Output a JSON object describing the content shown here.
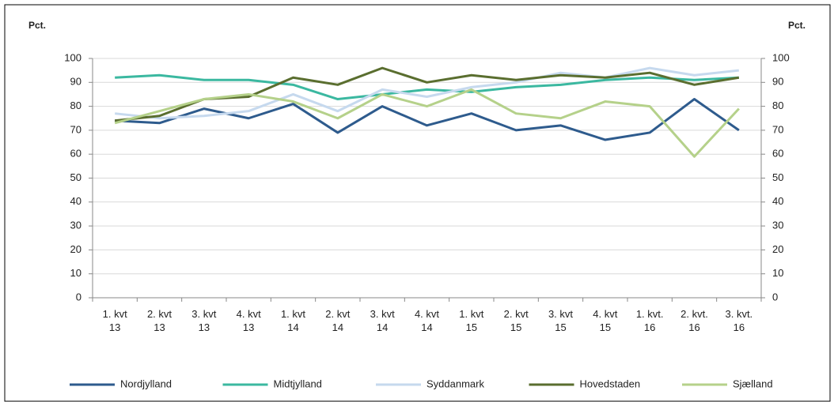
{
  "chart_data": {
    "type": "line",
    "ylabel": "Pct.",
    "y2label": "Pct.",
    "categories": [
      "1. kvt 13",
      "2. kvt 13",
      "3. kvt 13",
      "4. kvt 13",
      "1. kvt 14",
      "2. kvt 14",
      "3. kvt 14",
      "4. kvt 14",
      "1. kvt 15",
      "2. kvt 15",
      "3. kvt 15",
      "4. kvt 15",
      "1. kvt. 16",
      "2. kvt. 16",
      "3. kvt. 16"
    ],
    "series": [
      {
        "name": "Nordjylland",
        "color": "#2e5b8d",
        "values": [
          74,
          73,
          79,
          75,
          81,
          69,
          80,
          72,
          77,
          70,
          72,
          66,
          69,
          83,
          70
        ]
      },
      {
        "name": "Midtjylland",
        "color": "#3bb8a0",
        "values": [
          92,
          93,
          91,
          91,
          89,
          83,
          85,
          87,
          86,
          88,
          89,
          91,
          92,
          91,
          92
        ]
      },
      {
        "name": "Syddanmark",
        "color": "#c6d9ee",
        "values": [
          77,
          75,
          76,
          78,
          85,
          78,
          87,
          84,
          88,
          90,
          94,
          92,
          96,
          93,
          95
        ]
      },
      {
        "name": "Hovedstaden",
        "color": "#5a6e2f",
        "values": [
          74,
          76,
          83,
          84,
          92,
          89,
          96,
          90,
          93,
          91,
          93,
          92,
          94,
          89,
          92
        ]
      },
      {
        "name": "Sjælland",
        "color": "#b5d18a",
        "values": [
          73,
          78,
          83,
          85,
          82,
          75,
          85,
          80,
          87,
          77,
          75,
          82,
          80,
          59,
          79
        ]
      }
    ],
    "ylim": [
      0,
      100
    ],
    "yticks": [
      0,
      10,
      20,
      30,
      40,
      50,
      60,
      70,
      80,
      90,
      100
    ],
    "y2lim": [
      0,
      100
    ],
    "y2ticks": [
      0,
      10,
      20,
      30,
      40,
      50,
      60,
      70,
      80,
      90,
      100
    ],
    "grid": true
  }
}
